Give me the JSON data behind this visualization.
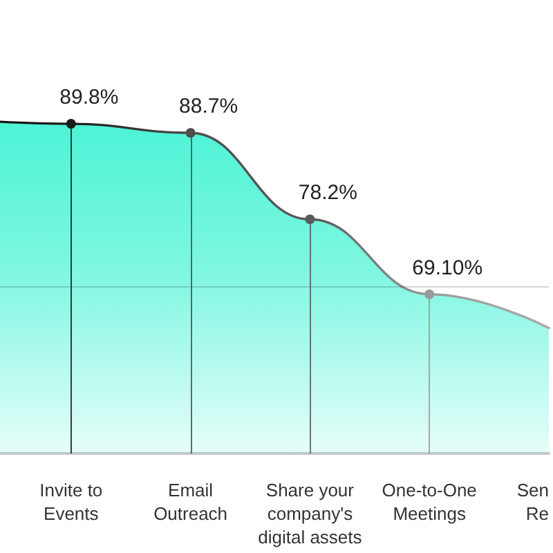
{
  "chart_data": {
    "type": "area",
    "categories": [
      null,
      "Invite to\nEvents",
      "Email\nOutreach",
      "Share your\ncompany's\ndigital assets",
      "One-to-One\nMeetings",
      "Sen\nRe"
    ],
    "values": [
      90.4,
      89.8,
      88.7,
      78.2,
      69.1,
      65
    ],
    "value_labels": [
      null,
      "89.8%",
      "88.7%",
      "78.2%",
      "69.10%",
      null
    ],
    "color": "#00eec4",
    "colors": [
      "#111111",
      "#1c1c1c",
      "#4d4d4d",
      "#5a5a5a",
      "#9a9a9a",
      "#aaaaaa"
    ],
    "ref_lines": [
      {
        "axis": "y",
        "value": 70,
        "color": "#000000"
      }
    ],
    "marker": "circle",
    "tick_labels": "x"
  }
}
